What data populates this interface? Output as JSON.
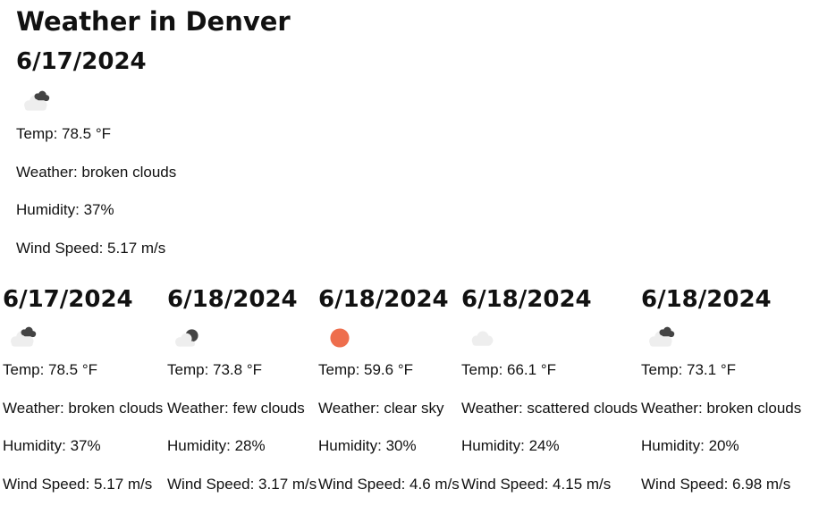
{
  "page_title": "Weather in Denver",
  "current": {
    "date": "6/17/2024",
    "icon": "broken-clouds-icon",
    "temp": "Temp: 78.5 °F",
    "weather": "Weather: broken clouds",
    "humidity": "Humidity: 37%",
    "wind": "Wind Speed: 5.17 m/s"
  },
  "forecast": [
    {
      "date": "6/17/2024",
      "icon": "broken-clouds-icon",
      "temp": "Temp: 78.5 °F",
      "weather": "Weather: broken clouds",
      "humidity": "Humidity: 37%",
      "wind": "Wind Speed: 5.17 m/s"
    },
    {
      "date": "6/18/2024",
      "icon": "few-clouds-icon",
      "temp": "Temp: 73.8 °F",
      "weather": "Weather: few clouds",
      "humidity": "Humidity: 28%",
      "wind": "Wind Speed: 3.17 m/s"
    },
    {
      "date": "6/18/2024",
      "icon": "clear-sky-icon",
      "temp": "Temp: 59.6 °F",
      "weather": "Weather: clear sky",
      "humidity": "Humidity: 30%",
      "wind": "Wind Speed: 4.6 m/s"
    },
    {
      "date": "6/18/2024",
      "icon": "scattered-clouds-icon",
      "temp": "Temp: 66.1 °F",
      "weather": "Weather: scattered clouds",
      "humidity": "Humidity: 24%",
      "wind": "Wind Speed: 4.15 m/s"
    },
    {
      "date": "6/18/2024",
      "icon": "broken-clouds-icon",
      "temp": "Temp: 73.1 °F",
      "weather": "Weather: broken clouds",
      "humidity": "Humidity: 20%",
      "wind": "Wind Speed: 6.98 m/s"
    }
  ],
  "colors": {
    "sun": "#ee6e4d",
    "cloud_light": "#eeeeee",
    "cloud_dark": "#444444"
  }
}
